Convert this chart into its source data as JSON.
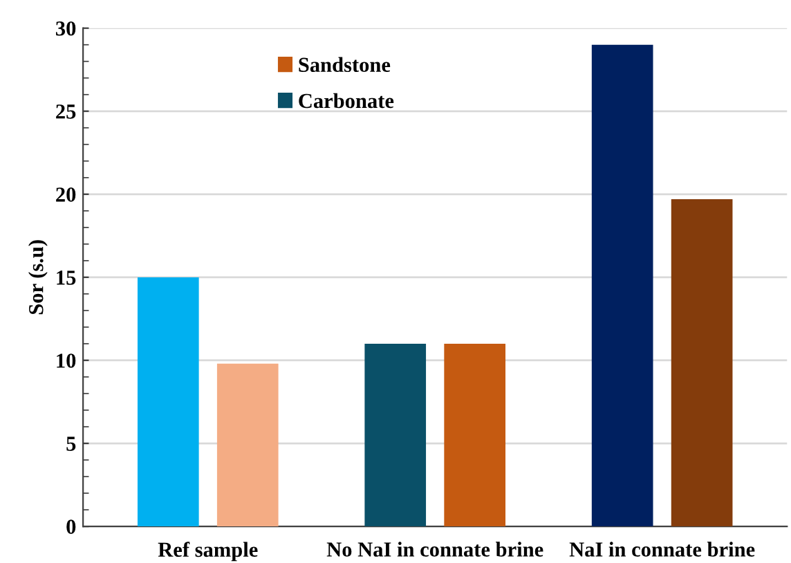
{
  "chart_data": {
    "type": "bar",
    "ylabel": "Sor (s.u)",
    "categories": [
      "Ref sample",
      "No NaI in connate brine",
      "NaI in connate brine"
    ],
    "series": [
      {
        "name": "Carbonate",
        "color": "#0a5068",
        "colors": [
          "#00b0f0",
          "#0a5068",
          "#002060"
        ],
        "values": [
          15,
          11,
          29
        ]
      },
      {
        "name": "Sandstone",
        "color": "#c55a11",
        "colors": [
          "#f4ac84",
          "#c55a11",
          "#843c0c"
        ],
        "values": [
          9.8,
          11,
          19.7
        ]
      }
    ],
    "ylim": [
      0,
      30
    ],
    "yticks": [
      0,
      5,
      10,
      15,
      20,
      25,
      30
    ],
    "grid": "y",
    "legend": "top"
  }
}
